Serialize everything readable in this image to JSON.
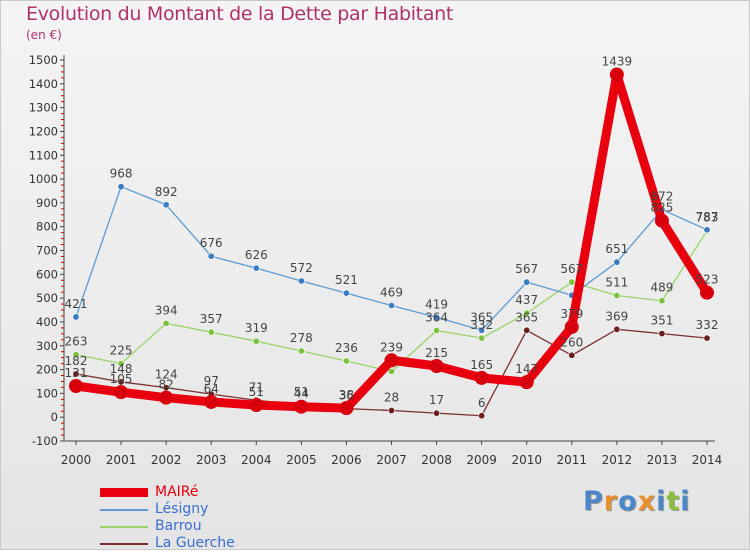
{
  "title": "Evolution du Montant de la Dette par Habitant",
  "unit": "(en €)",
  "logo": {
    "text": "Proxiti",
    "colors": [
      "#4a86c8",
      "#e8902a",
      "#4a86c8",
      "#e8902a",
      "#4a86c8",
      "#8cbd3c",
      "#4a86c8"
    ]
  },
  "chart_data": {
    "type": "line",
    "x": [
      "2000",
      "2001",
      "2002",
      "2003",
      "2004",
      "2005",
      "2006",
      "2007",
      "2008",
      "2009",
      "2010",
      "2011",
      "2012",
      "2013",
      "2014"
    ],
    "ylim": [
      -100,
      1500
    ],
    "yticks": [
      -100,
      0,
      100,
      200,
      300,
      400,
      500,
      600,
      700,
      800,
      900,
      1000,
      1100,
      1200,
      1300,
      1400,
      1500
    ],
    "grid": false,
    "legend_position": "bottom-left",
    "series": [
      {
        "name": "MAIRé",
        "color": "#e8000e",
        "width": 9,
        "marker": 7,
        "markerColor": "#d8000c",
        "values": [
          131,
          105,
          82,
          64,
          51,
          44,
          38,
          239,
          215,
          165,
          147,
          379,
          1439,
          825,
          523
        ]
      },
      {
        "name": "Lésigny",
        "color": "#5c9ad4",
        "width": 1.3,
        "marker": 3.2,
        "markerColor": "#3a7cc4",
        "values": [
          421,
          968,
          892,
          676,
          626,
          572,
          521,
          469,
          419,
          365,
          567,
          512,
          651,
          872,
          787
        ]
      },
      {
        "name": "Barrou",
        "color": "#98d36a",
        "width": 1.3,
        "marker": 3.2,
        "markerColor": "#7cc040",
        "values": [
          263,
          225,
          394,
          357,
          319,
          278,
          236,
          192,
          364,
          332,
          437,
          567,
          511,
          489,
          783
        ]
      },
      {
        "name": "La Guerche",
        "color": "#7a2e2e",
        "width": 1.3,
        "marker": 3.2,
        "markerColor": "#6a1e1e",
        "values": [
          182,
          148,
          124,
          97,
          71,
          51,
          36,
          28,
          17,
          6,
          365,
          260,
          369,
          351,
          332
        ]
      }
    ]
  },
  "data_labels": [
    {
      "series": 1,
      "values": [
        "421",
        "968",
        "892",
        "676",
        "626",
        "572",
        "521",
        "469",
        "419",
        "365",
        "567",
        "",
        "651",
        "872",
        "787"
      ]
    },
    {
      "series": 2,
      "values": [
        "263",
        "225",
        "394",
        "357",
        "319",
        "278",
        "236",
        "",
        "364",
        "332",
        "437",
        "567",
        "511",
        "489",
        "783"
      ]
    },
    {
      "series": 3,
      "values": [
        "182",
        "148",
        "124",
        "97",
        "71",
        "51",
        "36",
        "28",
        "17",
        "6",
        "365",
        "260",
        "369",
        "351",
        "332"
      ]
    },
    {
      "series": 0,
      "values": [
        "131",
        "105",
        "82",
        "64",
        "51",
        "44",
        "38",
        "239",
        "215",
        "165",
        "147",
        "379",
        "1439",
        "825",
        "523"
      ]
    }
  ]
}
